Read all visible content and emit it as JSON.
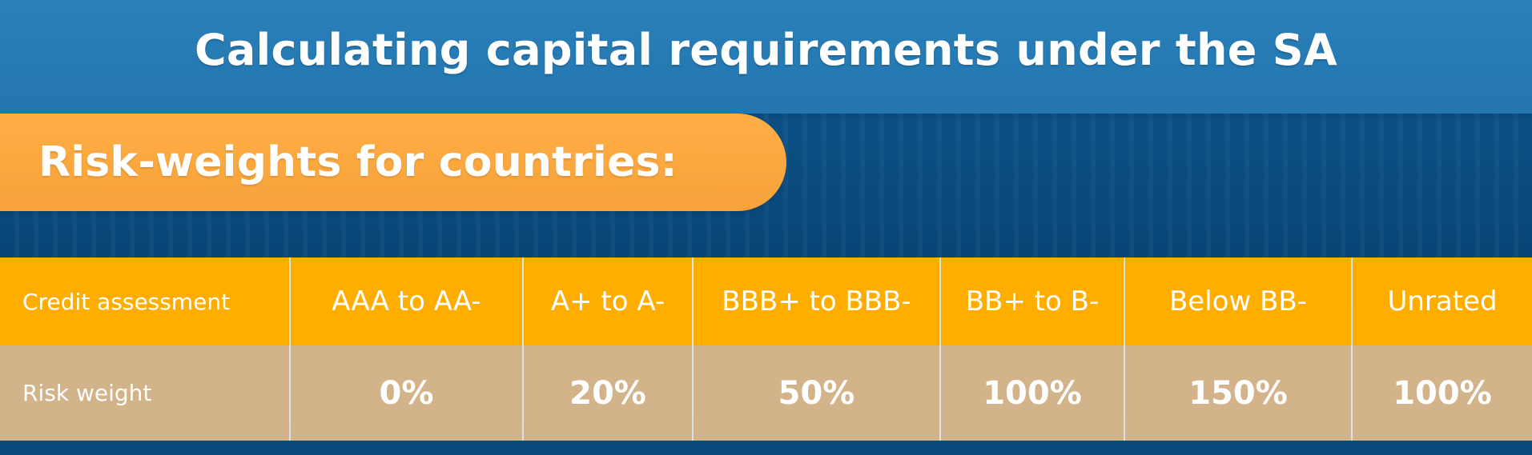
{
  "header": {
    "title": "Calculating capital requirements under the SA"
  },
  "section": {
    "subtitle": "Risk-weights for countries:"
  },
  "table": {
    "row1": {
      "label": "Credit assessment",
      "cells": [
        "AAA  to  AA-",
        "A+ to  A-",
        "BBB+ to BBB-",
        "BB+ to B-",
        "Below  BB-",
        "Unrated"
      ]
    },
    "row2": {
      "label": "Risk weight",
      "cells": [
        "0%",
        "20%",
        "50%",
        "100%",
        "150%",
        "100%"
      ]
    }
  },
  "colors": {
    "header_blue": "#2476b0",
    "background_blue": "#0a4f86",
    "orange": "#ffae00",
    "pill_orange": "#f7a23a",
    "tan": "#d3b38a",
    "white": "#ffffff"
  }
}
